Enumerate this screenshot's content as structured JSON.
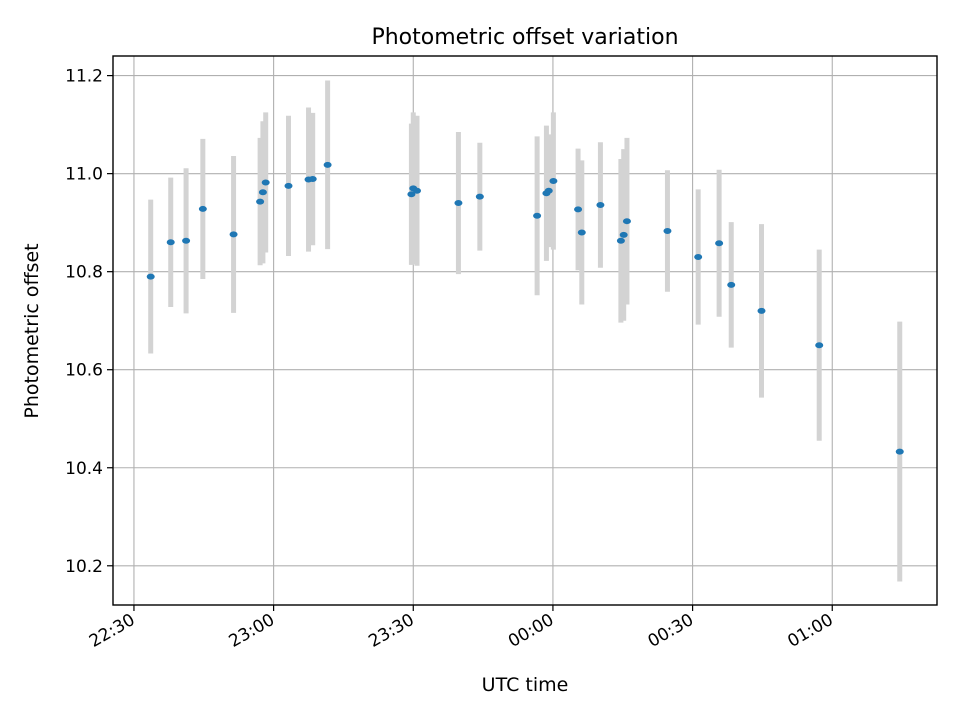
{
  "chart_data": {
    "type": "scatter",
    "title": "Photometric offset variation",
    "xlabel": "UTC time",
    "ylabel": "Photometric offset",
    "x_unit": "minutes after 22:00 UTC",
    "x_ticks": [
      {
        "value": 30,
        "label": "22:30"
      },
      {
        "value": 60,
        "label": "23:00"
      },
      {
        "value": 90,
        "label": "23:30"
      },
      {
        "value": 120,
        "label": "00:00"
      },
      {
        "value": 150,
        "label": "00:30"
      },
      {
        "value": 180,
        "label": "01:00"
      }
    ],
    "y_ticks": [
      10.2,
      10.4,
      10.6,
      10.8,
      11.0,
      11.2
    ],
    "xlim": [
      25.5,
      202.5
    ],
    "ylim": [
      10.12,
      11.24
    ],
    "grid": true,
    "colors": {
      "point": "#1f77b4",
      "errorbar": "#d3d3d3"
    },
    "series": [
      {
        "name": "",
        "points": [
          {
            "x": 33.6,
            "y": 10.79,
            "yerr": 0.157
          },
          {
            "x": 37.9,
            "y": 10.86,
            "yerr": 0.132
          },
          {
            "x": 41.2,
            "y": 10.863,
            "yerr": 0.148
          },
          {
            "x": 44.8,
            "y": 10.928,
            "yerr": 0.143
          },
          {
            "x": 51.4,
            "y": 10.876,
            "yerr": 0.16
          },
          {
            "x": 57.1,
            "y": 10.943,
            "yerr": 0.13
          },
          {
            "x": 57.7,
            "y": 10.962,
            "yerr": 0.145
          },
          {
            "x": 58.3,
            "y": 10.982,
            "yerr": 0.143
          },
          {
            "x": 63.2,
            "y": 10.975,
            "yerr": 0.143
          },
          {
            "x": 67.5,
            "y": 10.988,
            "yerr": 0.147
          },
          {
            "x": 68.4,
            "y": 10.989,
            "yerr": 0.135
          },
          {
            "x": 71.6,
            "y": 11.018,
            "yerr": 0.172
          },
          {
            "x": 89.6,
            "y": 10.958,
            "yerr": 0.144
          },
          {
            "x": 90.0,
            "y": 10.97,
            "yerr": 0.155
          },
          {
            "x": 90.8,
            "y": 10.965,
            "yerr": 0.153
          },
          {
            "x": 99.7,
            "y": 10.94,
            "yerr": 0.145
          },
          {
            "x": 104.3,
            "y": 10.953,
            "yerr": 0.11
          },
          {
            "x": 116.6,
            "y": 10.914,
            "yerr": 0.162
          },
          {
            "x": 118.6,
            "y": 10.96,
            "yerr": 0.138
          },
          {
            "x": 119.1,
            "y": 10.965,
            "yerr": 0.115
          },
          {
            "x": 120.1,
            "y": 10.985,
            "yerr": 0.14
          },
          {
            "x": 125.4,
            "y": 10.927,
            "yerr": 0.124
          },
          {
            "x": 126.2,
            "y": 10.88,
            "yerr": 0.147
          },
          {
            "x": 130.2,
            "y": 10.936,
            "yerr": 0.128
          },
          {
            "x": 134.6,
            "y": 10.863,
            "yerr": 0.167
          },
          {
            "x": 135.2,
            "y": 10.875,
            "yerr": 0.175
          },
          {
            "x": 135.9,
            "y": 10.903,
            "yerr": 0.17
          },
          {
            "x": 144.6,
            "y": 10.883,
            "yerr": 0.124
          },
          {
            "x": 151.2,
            "y": 10.83,
            "yerr": 0.138
          },
          {
            "x": 155.7,
            "y": 10.858,
            "yerr": 0.15
          },
          {
            "x": 158.3,
            "y": 10.773,
            "yerr": 0.128
          },
          {
            "x": 164.8,
            "y": 10.72,
            "yerr": 0.177
          },
          {
            "x": 177.2,
            "y": 10.65,
            "yerr": 0.195
          },
          {
            "x": 194.5,
            "y": 10.433,
            "yerr": 0.265
          }
        ]
      }
    ]
  }
}
